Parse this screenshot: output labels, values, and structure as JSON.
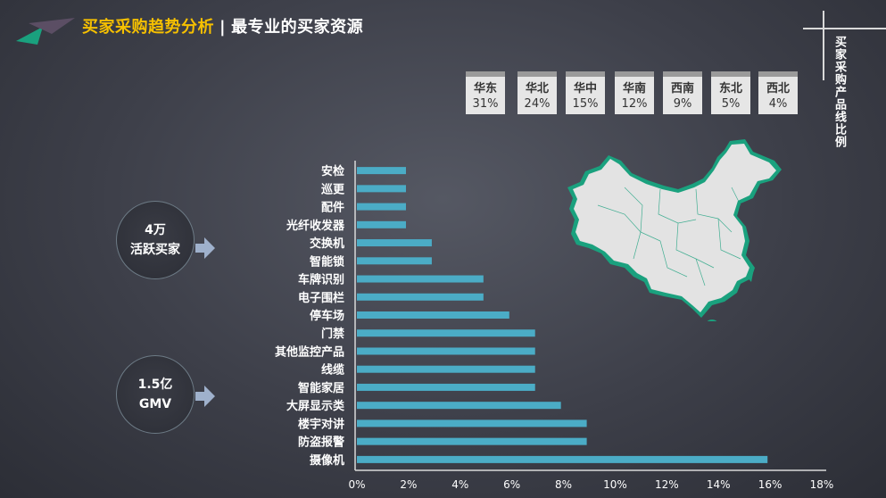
{
  "header": {
    "title_main": "买家采购趋势分析",
    "title_sep": "|",
    "title_sub": "最专业的买家资源"
  },
  "side_title": "买家采购产品线比例",
  "regions": [
    {
      "name": "华东",
      "value": "31%"
    },
    {
      "name": "华北",
      "value": "24%"
    },
    {
      "name": "华中",
      "value": "15%"
    },
    {
      "name": "华南",
      "value": "12%"
    },
    {
      "name": "西南",
      "value": "9%"
    },
    {
      "name": "东北",
      "value": "5%"
    },
    {
      "name": "西北",
      "value": "4%"
    }
  ],
  "stats": [
    {
      "line1": "4万",
      "line2": "活跃买家"
    },
    {
      "line1": "1.5亿",
      "line2": "GMV"
    }
  ],
  "colors": {
    "bar": "#4bacc6",
    "accent": "#f6c000",
    "map_fill": "#e3e3e3",
    "map_edge": "#1aa17e"
  },
  "chart_data": {
    "type": "bar",
    "orientation": "horizontal",
    "categories": [
      "安检",
      "巡更",
      "配件",
      "光纤收发器",
      "交换机",
      "智能锁",
      "车牌识别",
      "电子围栏",
      "停车场",
      "门禁",
      "其他监控产品",
      "线缆",
      "智能家居",
      "大屏显示类",
      "楼宇对讲",
      "防盗报警",
      "摄像机"
    ],
    "values": [
      1.9,
      1.9,
      1.9,
      1.9,
      2.9,
      2.9,
      4.9,
      4.9,
      5.9,
      6.9,
      6.9,
      6.9,
      6.9,
      7.9,
      8.9,
      8.9,
      15.9
    ],
    "xticks": [
      "0%",
      "2%",
      "4%",
      "6%",
      "8%",
      "10%",
      "12%",
      "14%",
      "16%",
      "18%"
    ],
    "xlim": [
      0,
      18
    ],
    "grid": false
  }
}
